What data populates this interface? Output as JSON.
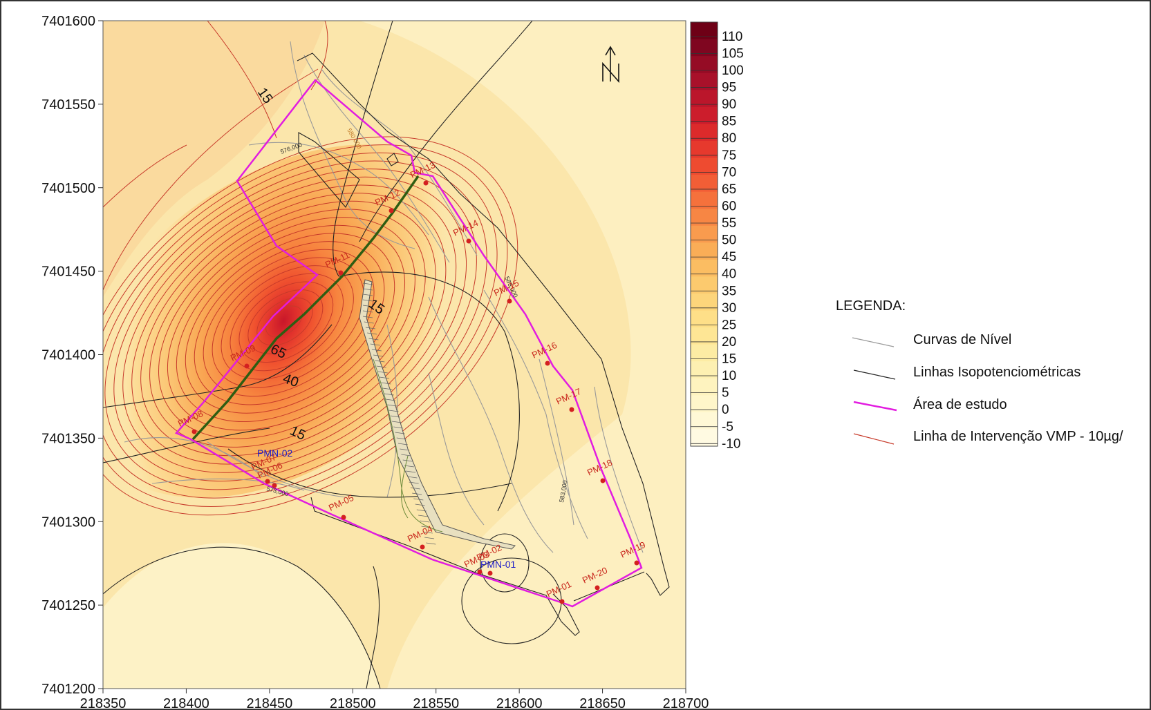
{
  "map": {
    "x_ticks": [
      "218350",
      "218400",
      "218450",
      "218500",
      "218550",
      "218600",
      "218650",
      "218700"
    ],
    "y_ticks": [
      "7401600",
      "7401550",
      "7401500",
      "7401450",
      "7401400",
      "7401350",
      "7401300",
      "7401250",
      "7401200"
    ],
    "contour_labels": [
      "15",
      "15",
      "65",
      "40",
      "15"
    ],
    "elevation_labels": [
      "576,000",
      "580,000",
      "585,000",
      "583,000",
      "573,000"
    ]
  },
  "wells": [
    {
      "name": "PM-13"
    },
    {
      "name": "PM-12"
    },
    {
      "name": "PM-14"
    },
    {
      "name": "PM-11"
    },
    {
      "name": "PM-15"
    },
    {
      "name": "PM-16"
    },
    {
      "name": "PM-17"
    },
    {
      "name": "PM-09"
    },
    {
      "name": "PM-08"
    },
    {
      "name": "PM-07"
    },
    {
      "name": "PM-06"
    },
    {
      "name": "PM-05"
    },
    {
      "name": "PM-04"
    },
    {
      "name": "PM-03"
    },
    {
      "name": "PM-02"
    },
    {
      "name": "PM-01"
    },
    {
      "name": "PM-20"
    },
    {
      "name": "PM-19"
    },
    {
      "name": "PM-18"
    }
  ],
  "monitoring": [
    {
      "name": "PMN-02"
    },
    {
      "name": "PMN-01"
    }
  ],
  "colorbar": {
    "labels": [
      "110",
      "105",
      "100",
      "95",
      "90",
      "85",
      "80",
      "75",
      "70",
      "65",
      "60",
      "55",
      "50",
      "45",
      "40",
      "35",
      "30",
      "25",
      "20",
      "15",
      "10",
      "5",
      "0",
      "-5",
      "-10"
    ],
    "colors": [
      "#6e0016",
      "#7f0620",
      "#950c25",
      "#a8112a",
      "#bb162b",
      "#cc1d2c",
      "#dc2a2b",
      "#e6392d",
      "#ee4b30",
      "#f25e36",
      "#f5713c",
      "#f78644",
      "#f99b4e",
      "#faad57",
      "#fbbd62",
      "#fcca6e",
      "#fdd57b",
      "#fedf88",
      "#fee695",
      "#fdeca4",
      "#fdf0b2",
      "#fef3bf",
      "#fff6ca",
      "#fff8d6",
      "#fffae2"
    ]
  },
  "legend": {
    "title": "LEGENDA:",
    "items": [
      {
        "label": "Curvas de Nível",
        "color": "#999999"
      },
      {
        "label": "Linhas Isopotenciométricas",
        "color": "#222222"
      },
      {
        "label": "Área de estudo",
        "color": "#e21ce0"
      },
      {
        "label": "Linha de Intervenção VMP - 10µg/",
        "color": "#c73a2a"
      }
    ]
  },
  "colors": {
    "study_area": "#e21ce0",
    "intervention": "#c73a2a",
    "level_curve": "#999999",
    "isopotentiometric": "#222222",
    "section_line": "#2e5d12",
    "well": "#d42020",
    "well_label": "#c8261c",
    "monitoring_label": "#1a1ac8"
  }
}
